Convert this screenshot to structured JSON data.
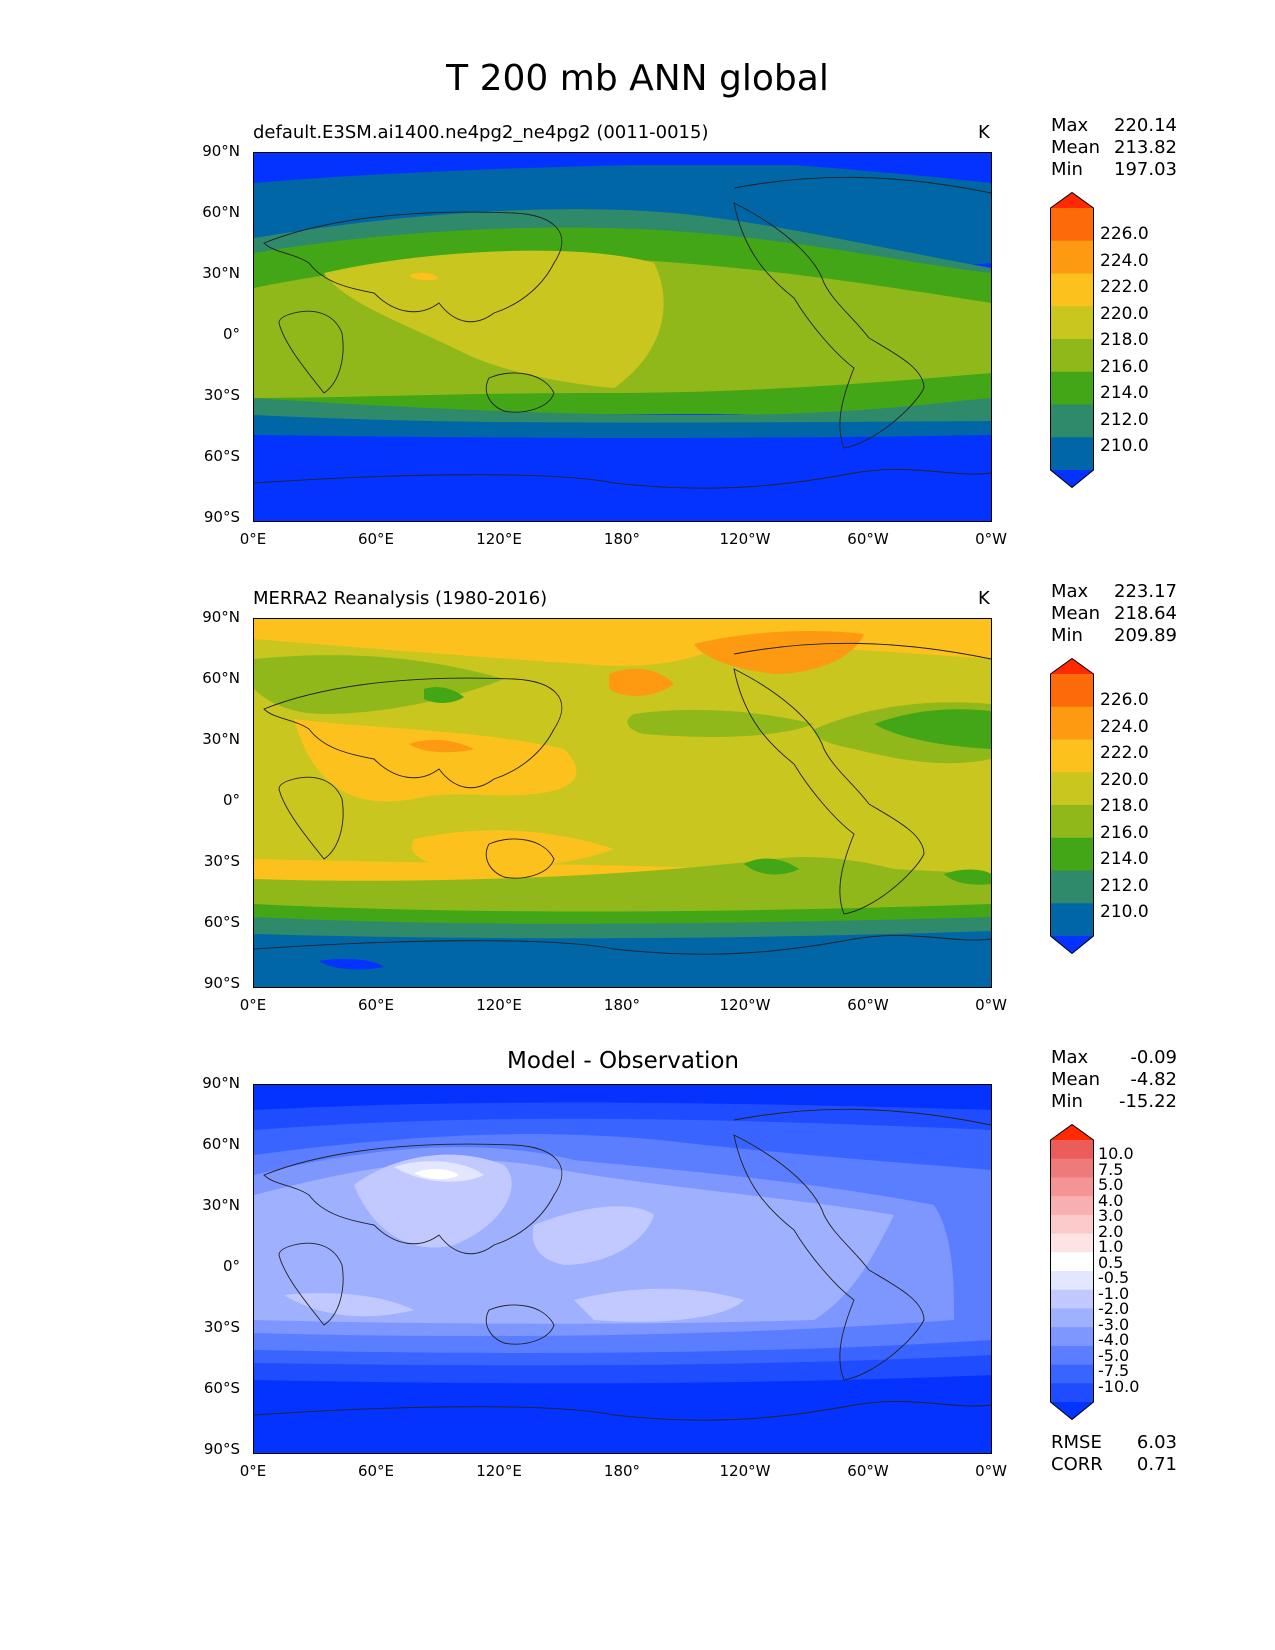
{
  "figure": {
    "title": "T 200 mb ANN global"
  },
  "axes": {
    "y_ticks": [
      "90°N",
      "60°N",
      "30°N",
      "0°",
      "30°S",
      "60°S",
      "90°S"
    ],
    "x_ticks": [
      "0°E",
      "60°E",
      "120°E",
      "180°",
      "120°W",
      "60°W",
      "0°W"
    ]
  },
  "panels": [
    {
      "title_left": "default.E3SM.ai1400.ne4pg2_ne4pg2 (0011-0015)",
      "title_right": "K",
      "stats": {
        "max_label": "Max",
        "max": "220.14",
        "mean_label": "Mean",
        "mean": "213.82",
        "min_label": "Min",
        "min": "197.03"
      },
      "colorbar": {
        "labels": [
          "226.0",
          "224.0",
          "222.0",
          "220.0",
          "218.0",
          "216.0",
          "214.0",
          "212.0",
          "210.0"
        ]
      }
    },
    {
      "title_left": "MERRA2 Reanalysis (1980-2016)",
      "title_right": "K",
      "stats": {
        "max_label": "Max",
        "max": "223.17",
        "mean_label": "Mean",
        "mean": "218.64",
        "min_label": "Min",
        "min": "209.89"
      },
      "colorbar": {
        "labels": [
          "226.0",
          "224.0",
          "222.0",
          "220.0",
          "218.0",
          "216.0",
          "214.0",
          "212.0",
          "210.0"
        ]
      }
    },
    {
      "title_center": "Model - Observation",
      "stats": {
        "max_label": "Max",
        "max": "-0.09",
        "mean_label": "Mean",
        "mean": "-4.82",
        "min_label": "Min",
        "min": "-15.22"
      },
      "colorbar": {
        "labels": [
          "10.0",
          "7.5",
          "5.0",
          "4.0",
          "3.0",
          "2.0",
          "1.0",
          "0.5",
          "-0.5",
          "-1.0",
          "-2.0",
          "-3.0",
          "-4.0",
          "-5.0",
          "-7.5",
          "-10.0"
        ]
      },
      "metrics": {
        "rmse_label": "RMSE",
        "rmse": "6.03",
        "corr_label": "CORR",
        "corr": "0.71"
      }
    }
  ],
  "colors": {
    "abs_scale": [
      "#0433ff",
      "#0066a6",
      "#2e8a6a",
      "#43a617",
      "#91b81a",
      "#c9c620",
      "#fcc11d",
      "#fd9a11",
      "#fc6a0a",
      "#ff2a00"
    ],
    "diff_scale": [
      "#0433ff",
      "#1f4cff",
      "#3a64ff",
      "#5a7eff",
      "#7d97ff",
      "#9fb0ff",
      "#c1c9ff",
      "#e2e6ff",
      "#ffffff",
      "#fde4e4",
      "#fbcaca",
      "#f7afaf",
      "#f49494",
      "#f07979",
      "#ed5c5c",
      "#ff2a00"
    ]
  }
}
